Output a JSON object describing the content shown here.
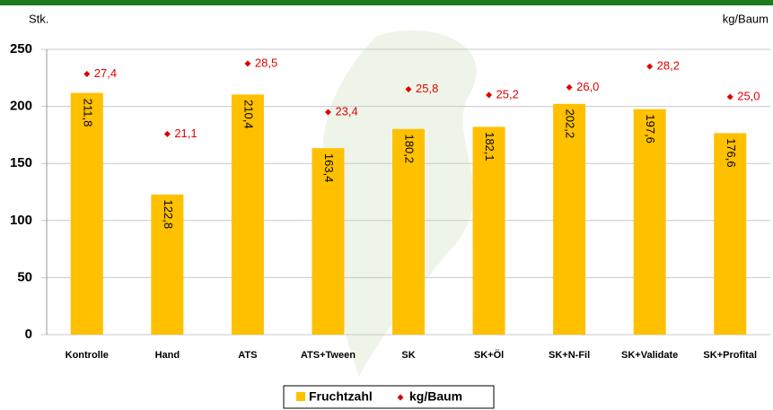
{
  "chart_data": {
    "type": "bar",
    "y_label": "Stk.",
    "y2_label": "kg/Baum",
    "categories": [
      "Kontrolle",
      "Hand",
      "ATS",
      "ATS+Tween",
      "SK",
      "SK+Öl",
      "SK+N-Fil",
      "SK+Validate",
      "SK+Profital"
    ],
    "series": [
      {
        "name": "Fruchtzahl",
        "type": "bar",
        "color": "#ffc000",
        "values": [
          211.8,
          122.8,
          210.4,
          163.4,
          180.2,
          182.1,
          202.2,
          197.6,
          176.6
        ],
        "value_labels": [
          "211,8",
          "122,8",
          "210,4",
          "163,4",
          "180,2",
          "182,1",
          "202,2",
          "197,6",
          "176,6"
        ]
      },
      {
        "name": "kg/Baum",
        "type": "scatter",
        "axis": "y2",
        "color": "#e00000",
        "values": [
          27.4,
          21.1,
          28.5,
          23.4,
          25.8,
          25.2,
          26.0,
          28.2,
          25.0
        ],
        "value_labels": [
          "27,4",
          "21,1",
          "28,5",
          "23,4",
          "25,8",
          "25,2",
          "26,0",
          "28,2",
          "25,0"
        ]
      }
    ],
    "ylim": [
      0,
      250
    ],
    "yticks": [
      0,
      50,
      100,
      150,
      200,
      250
    ],
    "y2lim": [
      0,
      30
    ],
    "grid": true
  }
}
